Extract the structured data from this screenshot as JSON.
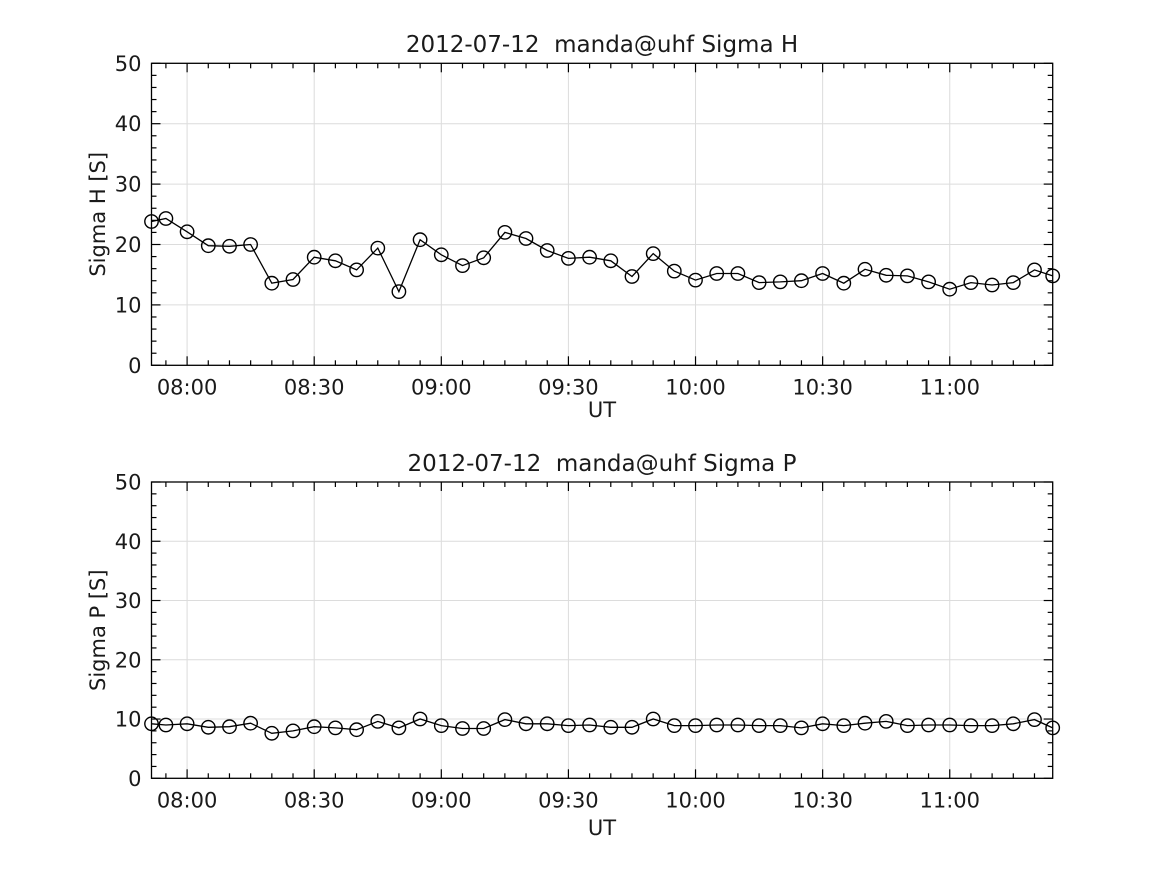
{
  "figure": {
    "background": "#ffffff",
    "text_color": "#1a1a1a",
    "line_color": "#000000",
    "grid_color": "#dcdcdc"
  },
  "chart_data": [
    {
      "type": "line",
      "title": "2012-07-12  manda@uhf Sigma H",
      "xlabel": "UT",
      "ylabel": "Sigma H [S]",
      "ylim": [
        0,
        50
      ],
      "yticks": [
        0,
        10,
        20,
        30,
        40,
        50
      ],
      "y_minor_step": 2,
      "xlim_minutes": [
        471.6,
        684.3
      ],
      "x_minor_step_minutes": 5,
      "grid": true,
      "legend_position": "none",
      "marker": "open-circle",
      "xticks": [
        {
          "minute": 480,
          "label": "08:00"
        },
        {
          "minute": 510,
          "label": "08:30"
        },
        {
          "minute": 540,
          "label": "09:00"
        },
        {
          "minute": 570,
          "label": "09:30"
        },
        {
          "minute": 600,
          "label": "10:00"
        },
        {
          "minute": 630,
          "label": "10:30"
        },
        {
          "minute": 660,
          "label": "11:00"
        }
      ],
      "series": [
        {
          "name": "Sigma H",
          "x_minutes": [
            471.6,
            475,
            480,
            485,
            490,
            495,
            500,
            505,
            510,
            515,
            520,
            525,
            530,
            535,
            540,
            545,
            550,
            555,
            560,
            565,
            570,
            575,
            580,
            585,
            590,
            595,
            600,
            605,
            610,
            615,
            620,
            625,
            630,
            635,
            640,
            645,
            650,
            655,
            660,
            665,
            670,
            675,
            680,
            684.3
          ],
          "values": [
            23.8,
            24.3,
            22.1,
            19.8,
            19.7,
            20.0,
            13.6,
            14.2,
            17.9,
            17.3,
            15.8,
            19.4,
            12.2,
            20.8,
            18.3,
            16.5,
            17.8,
            22.0,
            21.0,
            19.0,
            17.7,
            17.9,
            17.3,
            14.7,
            18.5,
            15.6,
            14.1,
            15.2,
            15.2,
            13.7,
            13.8,
            14.0,
            15.2,
            13.6,
            15.9,
            14.9,
            14.8,
            13.8,
            12.6,
            13.7,
            13.3,
            13.7,
            15.8,
            14.8
          ]
        }
      ]
    },
    {
      "type": "line",
      "title": "2012-07-12  manda@uhf Sigma P",
      "xlabel": "UT",
      "ylabel": "Sigma P [S]",
      "ylim": [
        0,
        50
      ],
      "yticks": [
        0,
        10,
        20,
        30,
        40,
        50
      ],
      "y_minor_step": 2,
      "xlim_minutes": [
        471.6,
        684.3
      ],
      "x_minor_step_minutes": 5,
      "grid": true,
      "legend_position": "none",
      "marker": "open-circle",
      "xticks": [
        {
          "minute": 480,
          "label": "08:00"
        },
        {
          "minute": 510,
          "label": "08:30"
        },
        {
          "minute": 540,
          "label": "09:00"
        },
        {
          "minute": 570,
          "label": "09:30"
        },
        {
          "minute": 600,
          "label": "10:00"
        },
        {
          "minute": 630,
          "label": "10:30"
        },
        {
          "minute": 660,
          "label": "11:00"
        }
      ],
      "series": [
        {
          "name": "Sigma P",
          "x_minutes": [
            471.6,
            475,
            480,
            485,
            490,
            495,
            500,
            505,
            510,
            515,
            520,
            525,
            530,
            535,
            540,
            545,
            550,
            555,
            560,
            565,
            570,
            575,
            580,
            585,
            590,
            595,
            600,
            605,
            610,
            615,
            620,
            625,
            630,
            635,
            640,
            645,
            650,
            655,
            660,
            665,
            670,
            675,
            680,
            684.3
          ],
          "values": [
            9.2,
            9.0,
            9.2,
            8.6,
            8.7,
            9.3,
            7.6,
            8.0,
            8.7,
            8.5,
            8.2,
            9.6,
            8.5,
            10.0,
            8.9,
            8.4,
            8.4,
            9.9,
            9.2,
            9.2,
            8.9,
            9.0,
            8.6,
            8.6,
            10.0,
            8.9,
            8.9,
            9.0,
            9.0,
            8.9,
            8.9,
            8.5,
            9.2,
            8.9,
            9.3,
            9.6,
            8.9,
            9.0,
            9.0,
            8.9,
            8.9,
            9.2,
            9.9,
            8.5
          ]
        }
      ]
    }
  ]
}
